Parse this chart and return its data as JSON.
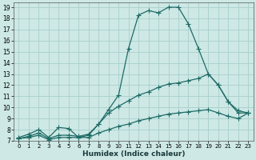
{
  "xlabel": "Humidex (Indice chaleur)",
  "bg_color": "#cde8e5",
  "grid_color": "#a8cfcc",
  "line_color": "#1e6b65",
  "xlim": [
    -0.5,
    23.5
  ],
  "ylim": [
    7,
    19.4
  ],
  "xticks": [
    0,
    1,
    2,
    3,
    4,
    5,
    6,
    7,
    8,
    9,
    10,
    11,
    12,
    13,
    14,
    15,
    16,
    17,
    18,
    19,
    20,
    21,
    22,
    23
  ],
  "yticks": [
    7,
    8,
    9,
    10,
    11,
    12,
    13,
    14,
    15,
    16,
    17,
    18,
    19
  ],
  "line1_x": [
    0,
    1,
    2,
    3,
    4,
    5,
    6,
    7,
    8,
    9,
    10,
    11,
    12,
    13,
    14,
    15,
    16,
    17,
    18,
    19,
    20,
    21,
    22,
    23
  ],
  "line1_y": [
    7.3,
    7.6,
    8.0,
    7.3,
    8.2,
    8.1,
    7.3,
    7.5,
    8.5,
    9.8,
    11.1,
    15.3,
    18.3,
    18.7,
    18.5,
    19.0,
    19.0,
    17.5,
    15.3,
    13.0,
    12.0,
    10.5,
    9.5,
    9.5
  ],
  "line2_x": [
    0,
    1,
    2,
    3,
    4,
    5,
    6,
    7,
    8,
    9,
    10,
    11,
    12,
    13,
    14,
    15,
    16,
    17,
    18,
    19,
    20,
    21,
    22,
    23
  ],
  "line2_y": [
    7.2,
    7.4,
    7.7,
    7.2,
    7.5,
    7.5,
    7.4,
    7.6,
    8.5,
    9.5,
    10.1,
    10.6,
    11.1,
    11.4,
    11.8,
    12.1,
    12.2,
    12.4,
    12.6,
    13.0,
    12.0,
    10.5,
    9.7,
    9.5
  ],
  "line3_x": [
    0,
    1,
    2,
    3,
    4,
    5,
    6,
    7,
    8,
    9,
    10,
    11,
    12,
    13,
    14,
    15,
    16,
    17,
    18,
    19,
    20,
    21,
    22,
    23
  ],
  "line3_y": [
    7.2,
    7.3,
    7.5,
    7.1,
    7.3,
    7.3,
    7.3,
    7.3,
    7.7,
    8.0,
    8.3,
    8.5,
    8.8,
    9.0,
    9.2,
    9.4,
    9.5,
    9.6,
    9.7,
    9.8,
    9.5,
    9.2,
    9.0,
    9.5
  ]
}
